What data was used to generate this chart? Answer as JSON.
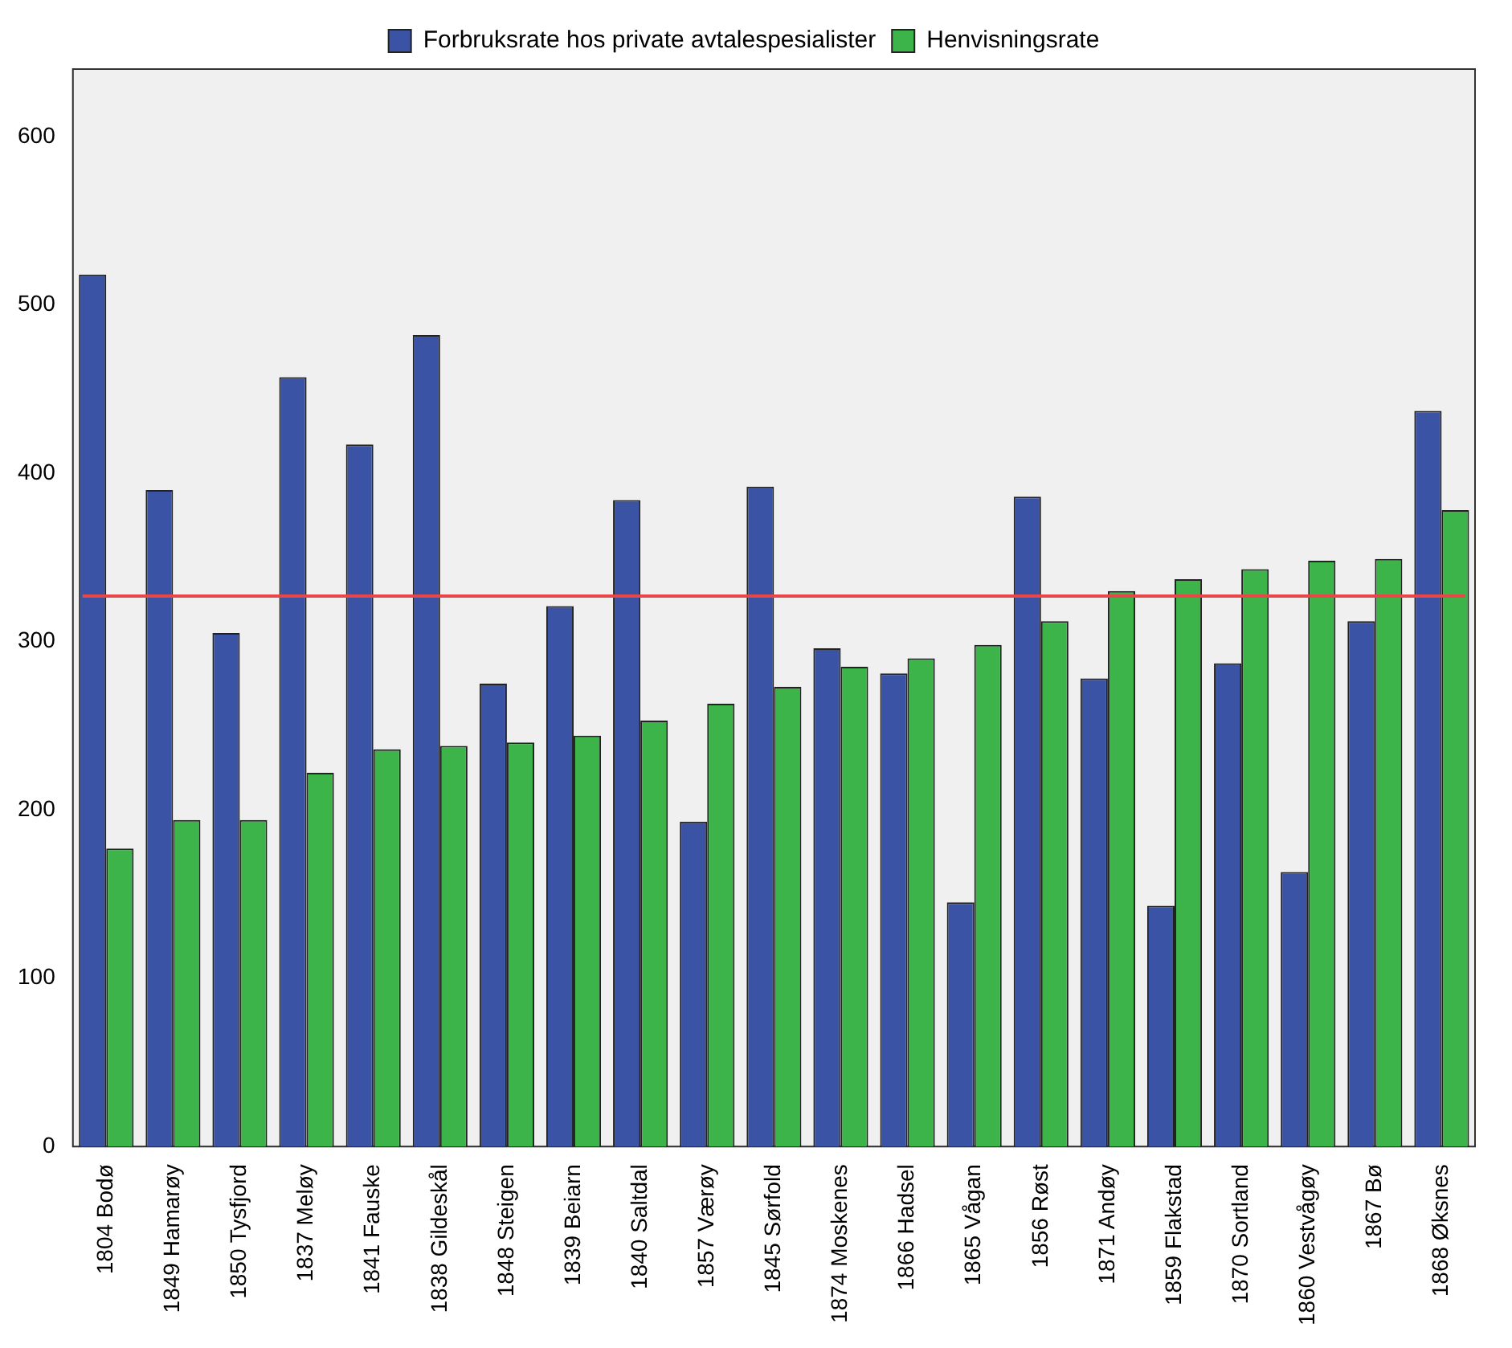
{
  "chart_data": {
    "type": "bar",
    "categories": [
      "1804 Bodø",
      "1849 Hamarøy",
      "1850 Tysfjord",
      "1837 Meløy",
      "1841 Fauske",
      "1838 Gildeskål",
      "1848 Steigen",
      "1839 Beiarn",
      "1840 Saltdal",
      "1857 Værøy",
      "1845 Sørfold",
      "1874 Moskenes",
      "1866 Hadsel",
      "1865 Vågan",
      "1856 Røst",
      "1871 Andøy",
      "1859 Flakstad",
      "1870 Sortland",
      "1860 Vestvågøy",
      "1867 Bø",
      "1868 Øksnes"
    ],
    "series": [
      {
        "name": "Forbruksrate hos private avtalespesialister",
        "color": "#3a53a4",
        "values": [
          518,
          390,
          305,
          457,
          417,
          482,
          275,
          321,
          384,
          193,
          392,
          296,
          281,
          145,
          386,
          278,
          143,
          287,
          163,
          312,
          437
        ]
      },
      {
        "name": "Henvisningsrate",
        "color": "#3cb44a",
        "values": [
          177,
          194,
          194,
          222,
          236,
          238,
          240,
          244,
          253,
          263,
          273,
          285,
          290,
          298,
          312,
          330,
          337,
          343,
          348,
          349,
          378
        ]
      }
    ],
    "ylim": [
      0,
      640
    ],
    "yticks": [
      0,
      100,
      200,
      300,
      400,
      500,
      600
    ],
    "grid": false,
    "legend": "top",
    "ref_lines": [
      {
        "axis": "y",
        "value": 327,
        "color": "#e8474a"
      }
    ]
  }
}
